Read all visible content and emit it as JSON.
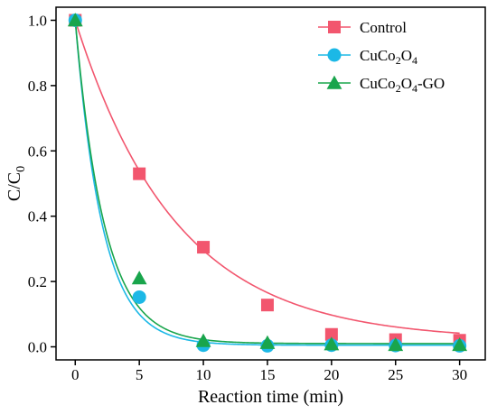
{
  "chart_data": {
    "type": "scatter",
    "xlabel": "Reaction time (min)",
    "ylabel": "C/C",
    "ylabel_sub": "0",
    "xlim": [
      -1.5,
      32
    ],
    "ylim": [
      -0.04,
      1.04
    ],
    "xticks": [
      0,
      5,
      10,
      15,
      20,
      25,
      30
    ],
    "yticks": [
      0.0,
      0.2,
      0.4,
      0.6,
      0.8,
      1.0
    ],
    "ytick_labels": [
      "0.0",
      "0.2",
      "0.4",
      "0.6",
      "0.8",
      "1.0"
    ],
    "grid": false,
    "legend_position": "top-right",
    "series": [
      {
        "name": "Control",
        "legend_parts": [
          {
            "t": "Control"
          }
        ],
        "marker": "square",
        "color": "#f2566e",
        "x": [
          0,
          5,
          10,
          15,
          20,
          25,
          30
        ],
        "y": [
          1.0,
          0.53,
          0.305,
          0.128,
          0.038,
          0.022,
          0.02
        ],
        "fit": {
          "a": 0.98,
          "k": 0.127,
          "c": 0.02
        }
      },
      {
        "name": "CuCo2O4",
        "legend_parts": [
          {
            "t": "CuCo"
          },
          {
            "t": "2",
            "sub": true
          },
          {
            "t": "O"
          },
          {
            "t": "4",
            "sub": true
          }
        ],
        "marker": "circle",
        "color": "#1cb8e6",
        "x": [
          0,
          5,
          10,
          15,
          20,
          25,
          30
        ],
        "y": [
          1.0,
          0.152,
          0.005,
          0.003,
          0.005,
          0.004,
          0.003
        ],
        "fit": {
          "a": 0.995,
          "k": 0.47,
          "c": 0.005
        }
      },
      {
        "name": "CuCo2O4-GO",
        "legend_parts": [
          {
            "t": "CuCo"
          },
          {
            "t": "2",
            "sub": true
          },
          {
            "t": "O"
          },
          {
            "t": "4",
            "sub": true
          },
          {
            "t": "-GO"
          }
        ],
        "marker": "triangle",
        "color": "#19a54c",
        "x": [
          0,
          5,
          10,
          15,
          20,
          25,
          30
        ],
        "y": [
          1.0,
          0.21,
          0.018,
          0.012,
          0.008,
          0.006,
          0.006
        ],
        "fit": {
          "a": 0.99,
          "k": 0.44,
          "c": 0.01
        }
      }
    ]
  }
}
